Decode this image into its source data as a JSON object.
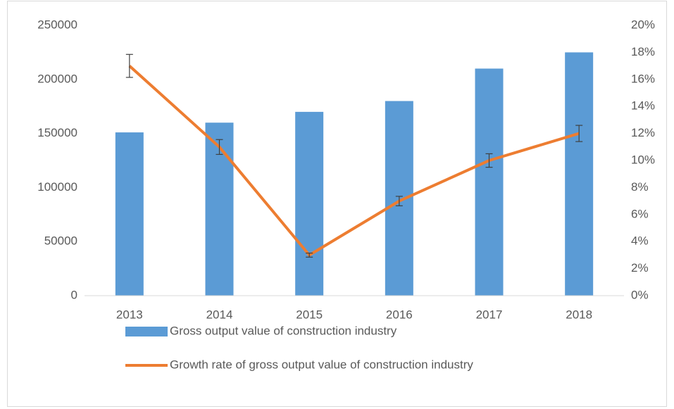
{
  "chart_data": {
    "type": "bar-line",
    "categories": [
      "2013",
      "2014",
      "2015",
      "2016",
      "2017",
      "2018"
    ],
    "series": [
      {
        "name": "Gross output value of construction industry",
        "type": "bar",
        "color": "#5b9bd5",
        "axis": "y",
        "values": [
          151000,
          160000,
          170000,
          180000,
          210000,
          225000
        ]
      },
      {
        "name": "Growth rate of gross output value of construction industry",
        "type": "line",
        "color": "#ed7d31",
        "axis": "y2",
        "values": [
          17,
          11,
          3,
          7,
          10,
          12
        ],
        "errors": [
          0.85,
          0.55,
          0.15,
          0.35,
          0.5,
          0.6
        ]
      }
    ],
    "ylim": [
      0,
      250000
    ],
    "yticks": [
      0,
      50000,
      100000,
      150000,
      200000,
      250000
    ],
    "y2lim": [
      0,
      20
    ],
    "y2ticks": [
      {
        "value": 0,
        "label": "0%"
      },
      {
        "value": 2,
        "label": "2%"
      },
      {
        "value": 4,
        "label": "4%"
      },
      {
        "value": 6,
        "label": "6%"
      },
      {
        "value": 8,
        "label": "8%"
      },
      {
        "value": 10,
        "label": "10%"
      },
      {
        "value": 12,
        "label": "12%"
      },
      {
        "value": 14,
        "label": "14%"
      },
      {
        "value": 16,
        "label": "16%"
      },
      {
        "value": 18,
        "label": "18%"
      },
      {
        "value": 20,
        "label": "20%"
      }
    ],
    "legend": "bottom",
    "grid": false
  }
}
